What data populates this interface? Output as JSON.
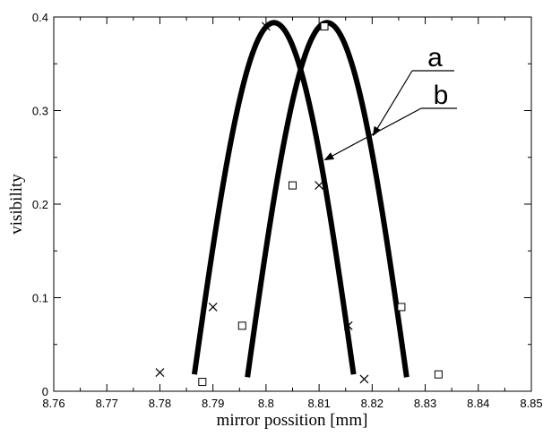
{
  "chart_data": {
    "type": "scatter",
    "title": "",
    "xlabel": "mirror possition [mm]",
    "ylabel": "visibility",
    "xlim": [
      8.76,
      8.85
    ],
    "ylim": [
      0,
      0.4
    ],
    "xticks": [
      8.76,
      8.77,
      8.78,
      8.79,
      8.8,
      8.81,
      8.82,
      8.83,
      8.84,
      8.85
    ],
    "xtick_labels": [
      "8.76",
      "8.77",
      "8.78",
      "8.79",
      "8.8",
      "8.81",
      "8.82",
      "8.83",
      "8.84",
      "8.85"
    ],
    "yticks": [
      0,
      0.1,
      0.2,
      0.3,
      0.4
    ],
    "ytick_labels": [
      "0",
      "0.1",
      "0.2",
      "0.3",
      "0.4"
    ],
    "grid": false,
    "series": [
      {
        "marker": "cross",
        "curve": {
          "peak_x": 8.8015,
          "peak_y": 0.394,
          "x_range": [
            8.7865,
            8.8165
          ],
          "end_y": 0.018
        },
        "points": [
          {
            "x": 8.78,
            "y": 0.02
          },
          {
            "x": 8.79,
            "y": 0.09
          },
          {
            "x": 8.8,
            "y": 0.39
          },
          {
            "x": 8.81,
            "y": 0.22
          },
          {
            "x": 8.8155,
            "y": 0.07
          },
          {
            "x": 8.8185,
            "y": 0.013
          }
        ]
      },
      {
        "marker": "square",
        "curve": {
          "peak_x": 8.8115,
          "peak_y": 0.394,
          "x_range": [
            8.7965,
            8.8265
          ],
          "end_y": 0.015
        },
        "points": [
          {
            "x": 8.788,
            "y": 0.01
          },
          {
            "x": 8.7955,
            "y": 0.07
          },
          {
            "x": 8.805,
            "y": 0.22
          },
          {
            "x": 8.811,
            "y": 0.39
          },
          {
            "x": 8.8255,
            "y": 0.09
          },
          {
            "x": 8.8325,
            "y": 0.018
          }
        ]
      }
    ],
    "annotations": [
      {
        "text": "a",
        "series": 1
      },
      {
        "text": "b",
        "series": 0
      }
    ]
  }
}
